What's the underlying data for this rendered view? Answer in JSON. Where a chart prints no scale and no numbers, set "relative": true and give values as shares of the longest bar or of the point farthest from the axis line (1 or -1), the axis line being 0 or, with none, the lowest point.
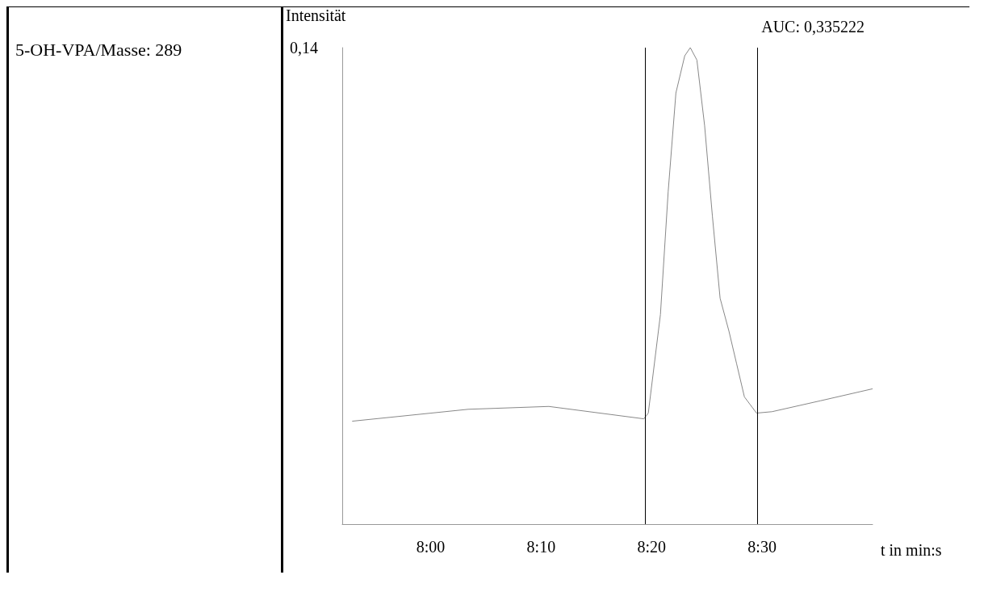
{
  "chart_data": {
    "type": "line",
    "title": "5-OH-VPA/Masse: 289",
    "ylabel": "Intensität",
    "xlabel": "t in min:s",
    "annotations": [
      "AUC: 0,335222",
      "0,14"
    ],
    "relative": true,
    "xlim": [
      472,
      520
    ],
    "xticks": [
      {
        "value": 480,
        "label": "8:00"
      },
      {
        "value": 490,
        "label": "8:10"
      },
      {
        "value": 500,
        "label": "8:20"
      },
      {
        "value": 510,
        "label": "8:30"
      }
    ],
    "x": [
      472.9,
      483.4,
      490.7,
      499.3,
      499.7,
      500.8,
      501.5,
      502.2,
      503.0,
      503.5,
      504.1,
      504.8,
      505.5,
      506.2,
      507.0,
      507.7,
      508.4,
      509.5,
      510.9,
      515.3,
      520
    ],
    "series": [
      {
        "color": "#888888",
        "values": [
          0.216,
          0.241,
          0.247,
          0.221,
          0.233,
          0.44,
          0.698,
          0.905,
          0.983,
          1,
          0.974,
          0.836,
          0.647,
          0.474,
          0.405,
          0.336,
          0.267,
          0.233,
          0.236,
          0.259,
          0.284
        ]
      }
    ],
    "ref_lines": [
      {
        "axis": "x",
        "value": 499.4,
        "color": "#000000"
      },
      {
        "axis": "x",
        "value": 509.6,
        "color": "#000000"
      }
    ],
    "grid": false
  }
}
